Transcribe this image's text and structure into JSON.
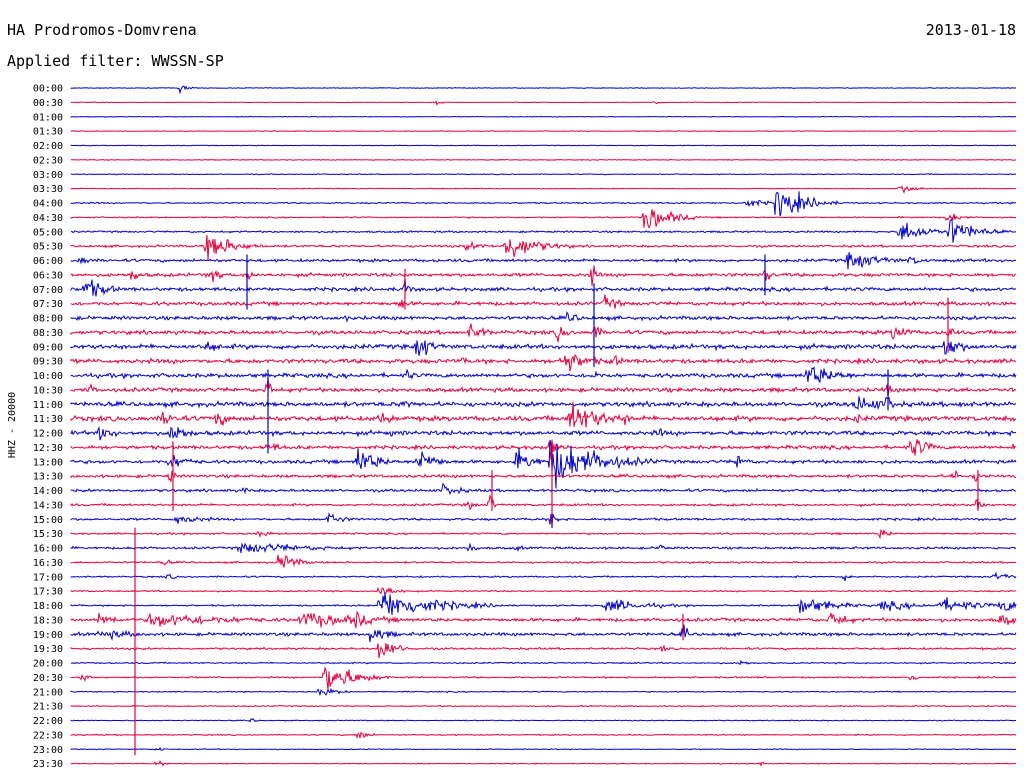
{
  "header": {
    "station": "HA Prodromos-Domvrena",
    "date": "2013-01-18",
    "filter_text": "Applied filter: WWSSN-SP"
  },
  "chart_data": {
    "type": "line",
    "title": "HA Prodromos-Domvrena",
    "subtitle": "Applied filter: WWSSN-SP",
    "ylabel": "HHZ - 20000",
    "xlabel": "",
    "categories": [
      "00:00",
      "00:30",
      "01:00",
      "01:30",
      "02:00",
      "02:30",
      "03:00",
      "03:30",
      "04:00",
      "04:30",
      "05:00",
      "05:30",
      "06:00",
      "06:30",
      "07:00",
      "07:30",
      "08:00",
      "08:30",
      "09:00",
      "09:30",
      "10:00",
      "10:30",
      "11:00",
      "11:30",
      "12:00",
      "12:30",
      "13:00",
      "13:30",
      "14:00",
      "14:30",
      "15:00",
      "15:30",
      "16:00",
      "16:30",
      "17:00",
      "17:30",
      "18:00",
      "18:30",
      "19:00",
      "19:30",
      "20:00",
      "20:30",
      "21:00",
      "21:30",
      "22:00",
      "22:30",
      "23:00",
      "23:30"
    ],
    "colors": {
      "even": "#0000cc",
      "odd": "#e8003c"
    },
    "noise_level": [
      0.3,
      0.3,
      0.3,
      0.3,
      0.35,
      0.35,
      0.4,
      0.4,
      0.6,
      0.6,
      0.8,
      1.0,
      1.3,
      1.5,
      1.6,
      1.6,
      1.6,
      1.7,
      2.0,
      1.9,
      1.8,
      1.8,
      2.0,
      2.2,
      1.9,
      1.6,
      1.5,
      1.3,
      1.2,
      1.0,
      1.0,
      0.8,
      1.0,
      0.8,
      0.7,
      0.6,
      0.7,
      1.5,
      1.4,
      0.9,
      0.6,
      0.7,
      0.5,
      0.5,
      0.4,
      0.5,
      0.4,
      0.4
    ],
    "events": [
      {
        "row": 0,
        "x": 180,
        "amp": 4,
        "dur": 8
      },
      {
        "row": 1,
        "x": 435,
        "amp": 3,
        "dur": 6
      },
      {
        "row": 1,
        "x": 655,
        "amp": 3,
        "dur": 4
      },
      {
        "row": 7,
        "x": 900,
        "amp": 4,
        "dur": 20
      },
      {
        "row": 8,
        "x": 777,
        "amp": 18,
        "dur": 25
      },
      {
        "row": 8,
        "x": 745,
        "amp": 5,
        "dur": 20
      },
      {
        "row": 9,
        "x": 645,
        "amp": 16,
        "dur": 22
      },
      {
        "row": 9,
        "x": 948,
        "amp": 6,
        "dur": 12
      },
      {
        "row": 10,
        "x": 900,
        "amp": 12,
        "dur": 25
      },
      {
        "row": 10,
        "x": 950,
        "amp": 15,
        "dur": 22
      },
      {
        "row": 11,
        "x": 207,
        "amp": 14,
        "dur": 25
      },
      {
        "row": 11,
        "x": 505,
        "amp": 16,
        "dur": 28
      },
      {
        "row": 11,
        "x": 465,
        "amp": 4,
        "dur": 25
      },
      {
        "row": 12,
        "x": 848,
        "amp": 10,
        "dur": 30
      },
      {
        "row": 12,
        "x": 80,
        "amp": 6,
        "dur": 10
      },
      {
        "row": 12,
        "x": 910,
        "amp": 5,
        "dur": 14
      },
      {
        "row": 13,
        "x": 130,
        "amp": 6,
        "dur": 14
      },
      {
        "row": 13,
        "x": 207,
        "amp": 7,
        "dur": 16
      },
      {
        "row": 13,
        "x": 247,
        "amp": 14,
        "dur": 4
      },
      {
        "row": 13,
        "x": 590,
        "amp": 16,
        "dur": 5
      },
      {
        "row": 13,
        "x": 765,
        "amp": 12,
        "dur": 4
      },
      {
        "row": 14,
        "x": 85,
        "amp": 12,
        "dur": 20
      },
      {
        "row": 14,
        "x": 405,
        "amp": 14,
        "dur": 4
      },
      {
        "row": 15,
        "x": 400,
        "amp": 8,
        "dur": 8
      },
      {
        "row": 15,
        "x": 605,
        "amp": 8,
        "dur": 14
      },
      {
        "row": 16,
        "x": 568,
        "amp": 8,
        "dur": 10
      },
      {
        "row": 16,
        "x": 345,
        "amp": 4,
        "dur": 6
      },
      {
        "row": 17,
        "x": 470,
        "amp": 9,
        "dur": 16
      },
      {
        "row": 17,
        "x": 558,
        "amp": 9,
        "dur": 10
      },
      {
        "row": 17,
        "x": 893,
        "amp": 9,
        "dur": 16
      },
      {
        "row": 17,
        "x": 595,
        "amp": 14,
        "dur": 4
      },
      {
        "row": 17,
        "x": 948,
        "amp": 12,
        "dur": 4
      },
      {
        "row": 18,
        "x": 205,
        "amp": 7,
        "dur": 16
      },
      {
        "row": 18,
        "x": 415,
        "amp": 10,
        "dur": 20
      },
      {
        "row": 18,
        "x": 945,
        "amp": 14,
        "dur": 14
      },
      {
        "row": 18,
        "x": 425,
        "amp": 12,
        "dur": 4
      },
      {
        "row": 19,
        "x": 562,
        "amp": 13,
        "dur": 24
      },
      {
        "row": 19,
        "x": 612,
        "amp": 7,
        "dur": 12
      },
      {
        "row": 19,
        "x": 460,
        "amp": 5,
        "dur": 10
      },
      {
        "row": 20,
        "x": 808,
        "amp": 13,
        "dur": 26
      },
      {
        "row": 20,
        "x": 407,
        "amp": 6,
        "dur": 8
      },
      {
        "row": 20,
        "x": 593,
        "amp": 10,
        "dur": 4
      },
      {
        "row": 21,
        "x": 88,
        "amp": 6,
        "dur": 10
      },
      {
        "row": 21,
        "x": 268,
        "amp": 16,
        "dur": 4
      },
      {
        "row": 21,
        "x": 888,
        "amp": 10,
        "dur": 4
      },
      {
        "row": 22,
        "x": 855,
        "amp": 9,
        "dur": 35
      },
      {
        "row": 22,
        "x": 403,
        "amp": 7,
        "dur": 8
      },
      {
        "row": 22,
        "x": 960,
        "amp": 5,
        "dur": 14
      },
      {
        "row": 22,
        "x": 888,
        "amp": 14,
        "dur": 4
      },
      {
        "row": 23,
        "x": 570,
        "amp": 18,
        "dur": 30
      },
      {
        "row": 23,
        "x": 163,
        "amp": 9,
        "dur": 16
      },
      {
        "row": 23,
        "x": 215,
        "amp": 8,
        "dur": 18
      },
      {
        "row": 23,
        "x": 380,
        "amp": 7,
        "dur": 18
      },
      {
        "row": 23,
        "x": 625,
        "amp": 6,
        "dur": 10
      },
      {
        "row": 23,
        "x": 855,
        "amp": 6,
        "dur": 10
      },
      {
        "row": 24,
        "x": 100,
        "amp": 8,
        "dur": 16
      },
      {
        "row": 24,
        "x": 172,
        "amp": 14,
        "dur": 12
      },
      {
        "row": 24,
        "x": 657,
        "amp": 6,
        "dur": 10
      },
      {
        "row": 24,
        "x": 390,
        "amp": 5,
        "dur": 6
      },
      {
        "row": 25,
        "x": 912,
        "amp": 12,
        "dur": 16
      },
      {
        "row": 25,
        "x": 268,
        "amp": 6,
        "dur": 14
      },
      {
        "row": 25,
        "x": 1012,
        "amp": 6,
        "dur": 8
      },
      {
        "row": 25,
        "x": 550,
        "amp": 20,
        "dur": 4
      },
      {
        "row": 26,
        "x": 550,
        "amp": 26,
        "dur": 44
      },
      {
        "row": 26,
        "x": 358,
        "amp": 16,
        "dur": 18
      },
      {
        "row": 26,
        "x": 418,
        "amp": 14,
        "dur": 16
      },
      {
        "row": 26,
        "x": 517,
        "amp": 13,
        "dur": 16
      },
      {
        "row": 26,
        "x": 737,
        "amp": 8,
        "dur": 10
      },
      {
        "row": 26,
        "x": 170,
        "amp": 9,
        "dur": 18
      },
      {
        "row": 27,
        "x": 170,
        "amp": 10,
        "dur": 4
      },
      {
        "row": 27,
        "x": 953,
        "amp": 8,
        "dur": 6
      },
      {
        "row": 27,
        "x": 975,
        "amp": 5,
        "dur": 14
      },
      {
        "row": 28,
        "x": 443,
        "amp": 7,
        "dur": 16
      },
      {
        "row": 28,
        "x": 245,
        "amp": 4,
        "dur": 8
      },
      {
        "row": 29,
        "x": 470,
        "amp": 8,
        "dur": 4
      },
      {
        "row": 29,
        "x": 490,
        "amp": 12,
        "dur": 4
      },
      {
        "row": 29,
        "x": 978,
        "amp": 14,
        "dur": 4
      },
      {
        "row": 30,
        "x": 329,
        "amp": 8,
        "dur": 12
      },
      {
        "row": 30,
        "x": 175,
        "amp": 5,
        "dur": 30
      },
      {
        "row": 30,
        "x": 552,
        "amp": 14,
        "dur": 4
      },
      {
        "row": 31,
        "x": 880,
        "amp": 5,
        "dur": 12
      },
      {
        "row": 31,
        "x": 260,
        "amp": 4,
        "dur": 10
      },
      {
        "row": 32,
        "x": 240,
        "amp": 6,
        "dur": 70
      },
      {
        "row": 32,
        "x": 470,
        "amp": 6,
        "dur": 6
      },
      {
        "row": 32,
        "x": 660,
        "amp": 5,
        "dur": 6
      },
      {
        "row": 32,
        "x": 516,
        "amp": 4,
        "dur": 6
      },
      {
        "row": 33,
        "x": 280,
        "amp": 11,
        "dur": 14
      },
      {
        "row": 33,
        "x": 163,
        "amp": 4,
        "dur": 8
      },
      {
        "row": 34,
        "x": 845,
        "amp": 4,
        "dur": 8
      },
      {
        "row": 34,
        "x": 168,
        "amp": 4,
        "dur": 6
      },
      {
        "row": 34,
        "x": 995,
        "amp": 4,
        "dur": 20
      },
      {
        "row": 35,
        "x": 380,
        "amp": 8,
        "dur": 14
      },
      {
        "row": 36,
        "x": 380,
        "amp": 16,
        "dur": 50
      },
      {
        "row": 36,
        "x": 800,
        "amp": 10,
        "dur": 30
      },
      {
        "row": 36,
        "x": 605,
        "amp": 7,
        "dur": 40
      },
      {
        "row": 36,
        "x": 940,
        "amp": 7,
        "dur": 40
      },
      {
        "row": 36,
        "x": 1000,
        "amp": 8,
        "dur": 24
      },
      {
        "row": 36,
        "x": 880,
        "amp": 5,
        "dur": 40
      },
      {
        "row": 37,
        "x": 150,
        "amp": 8,
        "dur": 80
      },
      {
        "row": 37,
        "x": 300,
        "amp": 8,
        "dur": 70
      },
      {
        "row": 37,
        "x": 355,
        "amp": 10,
        "dur": 14
      },
      {
        "row": 37,
        "x": 830,
        "amp": 10,
        "dur": 16
      },
      {
        "row": 37,
        "x": 1000,
        "amp": 7,
        "dur": 20
      },
      {
        "row": 37,
        "x": 98,
        "amp": 7,
        "dur": 20
      },
      {
        "row": 38,
        "x": 370,
        "amp": 8,
        "dur": 20
      },
      {
        "row": 38,
        "x": 100,
        "amp": 5,
        "dur": 40
      },
      {
        "row": 38,
        "x": 683,
        "amp": 12,
        "dur": 4
      },
      {
        "row": 39,
        "x": 378,
        "amp": 13,
        "dur": 16
      },
      {
        "row": 39,
        "x": 660,
        "amp": 4,
        "dur": 8
      },
      {
        "row": 40,
        "x": 740,
        "amp": 3,
        "dur": 10
      },
      {
        "row": 41,
        "x": 325,
        "amp": 18,
        "dur": 26
      },
      {
        "row": 41,
        "x": 82,
        "amp": 5,
        "dur": 8
      },
      {
        "row": 41,
        "x": 910,
        "amp": 5,
        "dur": 8
      },
      {
        "row": 42,
        "x": 320,
        "amp": 5,
        "dur": 16
      },
      {
        "row": 44,
        "x": 250,
        "amp": 3,
        "dur": 6
      },
      {
        "row": 45,
        "x": 357,
        "amp": 6,
        "dur": 10
      },
      {
        "row": 46,
        "x": 157,
        "amp": 3,
        "dur": 6
      },
      {
        "row": 47,
        "x": 157,
        "amp": 4,
        "dur": 6
      },
      {
        "row": 47,
        "x": 760,
        "amp": 3,
        "dur": 6
      }
    ],
    "spikes": [
      {
        "x": 135,
        "from_row": 31,
        "to_row": 46
      },
      {
        "x": 173,
        "from_row": 25,
        "to_row": 29
      },
      {
        "x": 247,
        "from_row": 12,
        "to_row": 15
      },
      {
        "x": 268,
        "from_row": 20,
        "to_row": 25
      },
      {
        "x": 405,
        "from_row": 13,
        "to_row": 15
      },
      {
        "x": 552,
        "from_row": 25,
        "to_row": 30
      },
      {
        "x": 594,
        "from_row": 14,
        "to_row": 19
      },
      {
        "x": 765,
        "from_row": 12,
        "to_row": 14
      },
      {
        "x": 888,
        "from_row": 20,
        "to_row": 22
      },
      {
        "x": 948,
        "from_row": 15,
        "to_row": 18
      },
      {
        "x": 978,
        "from_row": 27,
        "to_row": 29
      },
      {
        "x": 492,
        "from_row": 27,
        "to_row": 29
      },
      {
        "x": 683,
        "from_row": 37,
        "to_row": 38
      }
    ]
  }
}
